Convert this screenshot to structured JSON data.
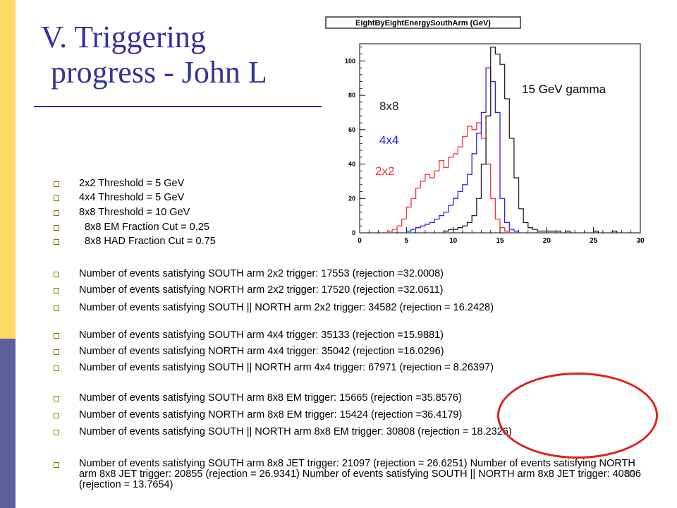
{
  "slide": {
    "title_line1": "V. Triggering",
    "title_line2": "progress - John L",
    "page_number": "32"
  },
  "bullets_thresholds": [
    "2x2 Threshold = 5 GeV",
    "4x4 Threshold = 5 GeV",
    "8x8 Threshold = 10 GeV",
    "8x8 EM Fraction Cut = 0.25",
    "8x8 HAD Fraction Cut = 0.75"
  ],
  "bullets_events": [
    "Number of events satisfying SOUTH arm 2x2 trigger: 17553 (rejection =32.0008)",
    "Number of events satisfying NORTH arm 2x2 trigger: 17520 (rejection =32.0611)",
    "Number of events satisfying SOUTH || NORTH arm 2x2 trigger: 34582 (rejection = 16.2428)",
    "Number of events satisfying SOUTH arm 4x4 trigger: 35133 (rejection =15.9881)",
    "Number of events satisfying NORTH arm 4x4 trigger: 35042 (rejection =16.0296)",
    "Number of events satisfying SOUTH || NORTH arm 4x4 trigger: 67971 (rejection = 8.26397)",
    "Number of events satisfying SOUTH arm 8x8 EM trigger: 15665 (rejection =35.8576)",
    "Number of events satisfying NORTH arm 8x8 EM trigger: 15424 (rejection =36.4179)",
    "Number of events satisfying SOUTH || NORTH arm 8x8 EM trigger: 30808 (rejection = 18.2326)",
    "Number of events satisfying SOUTH arm 8x8 JET trigger: 21097 (rejection = 26.6251) Number of events satisfying NORTH arm 8x8 JET trigger: 20855 (rejection = 26.9341) Number of events satisfying SOUTH || NORTH arm 8x8 JET trigger: 40806 (rejection = 13.7654)"
  ],
  "colors": {
    "title": "#333399",
    "sidebar_top": "#ffd966",
    "sidebar_bottom": "#5f5f9f",
    "series_2x2": "#ff3333",
    "series_4x4": "#2222ee",
    "series_8x8": "#222222",
    "highlight_ellipse": "#e02020"
  },
  "chart_data": {
    "type": "line",
    "title": "EightByEightEnergySouthArm (GeV)",
    "annotation": "15 GeV gamma",
    "xlim": [
      0,
      30
    ],
    "ylim": [
      0,
      110
    ],
    "xticks": [
      0,
      5,
      10,
      15,
      20,
      25,
      30
    ],
    "yticks": [
      0,
      20,
      40,
      60,
      80,
      100
    ],
    "bin_width": 0.5,
    "series": [
      {
        "name": "2x2",
        "color": "#ff3333",
        "x": [
          3,
          3.5,
          4,
          4.5,
          5,
          5.5,
          6,
          6.5,
          7,
          7.5,
          8,
          8.5,
          9,
          9.5,
          10,
          10.5,
          11,
          11.5,
          12,
          12.5,
          13,
          13.5,
          14,
          14.5,
          15,
          15.5
        ],
        "values": [
          1,
          2,
          4,
          8,
          15,
          20,
          26,
          30,
          34,
          32,
          36,
          42,
          38,
          44,
          46,
          50,
          56,
          62,
          60,
          64,
          55,
          40,
          20,
          8,
          3,
          1
        ]
      },
      {
        "name": "4x4",
        "color": "#2222ee",
        "x": [
          5,
          5.5,
          6,
          6.5,
          7,
          7.5,
          8,
          8.5,
          9,
          9.5,
          10,
          10.5,
          11,
          11.5,
          12,
          12.5,
          13,
          13.5,
          14,
          14.5,
          15,
          15.5,
          16,
          16.5
        ],
        "values": [
          1,
          2,
          3,
          4,
          5,
          6,
          8,
          10,
          12,
          16,
          20,
          24,
          28,
          34,
          46,
          58,
          70,
          96,
          88,
          70,
          20,
          6,
          2,
          1
        ]
      },
      {
        "name": "8x8",
        "color": "#222222",
        "x": [
          9,
          9.5,
          10,
          10.5,
          11,
          11.5,
          12,
          12.5,
          13,
          13.5,
          14,
          14.5,
          15,
          15.5,
          16,
          16.5,
          17,
          17.5,
          18,
          18.5,
          19,
          19.5,
          20,
          20.5,
          21,
          22,
          25,
          27
        ],
        "values": [
          1,
          2,
          2,
          3,
          4,
          6,
          10,
          20,
          40,
          68,
          108,
          104,
          98,
          78,
          55,
          32,
          14,
          6,
          3,
          2,
          1,
          1,
          1,
          1,
          1,
          1,
          1,
          1
        ]
      }
    ]
  }
}
